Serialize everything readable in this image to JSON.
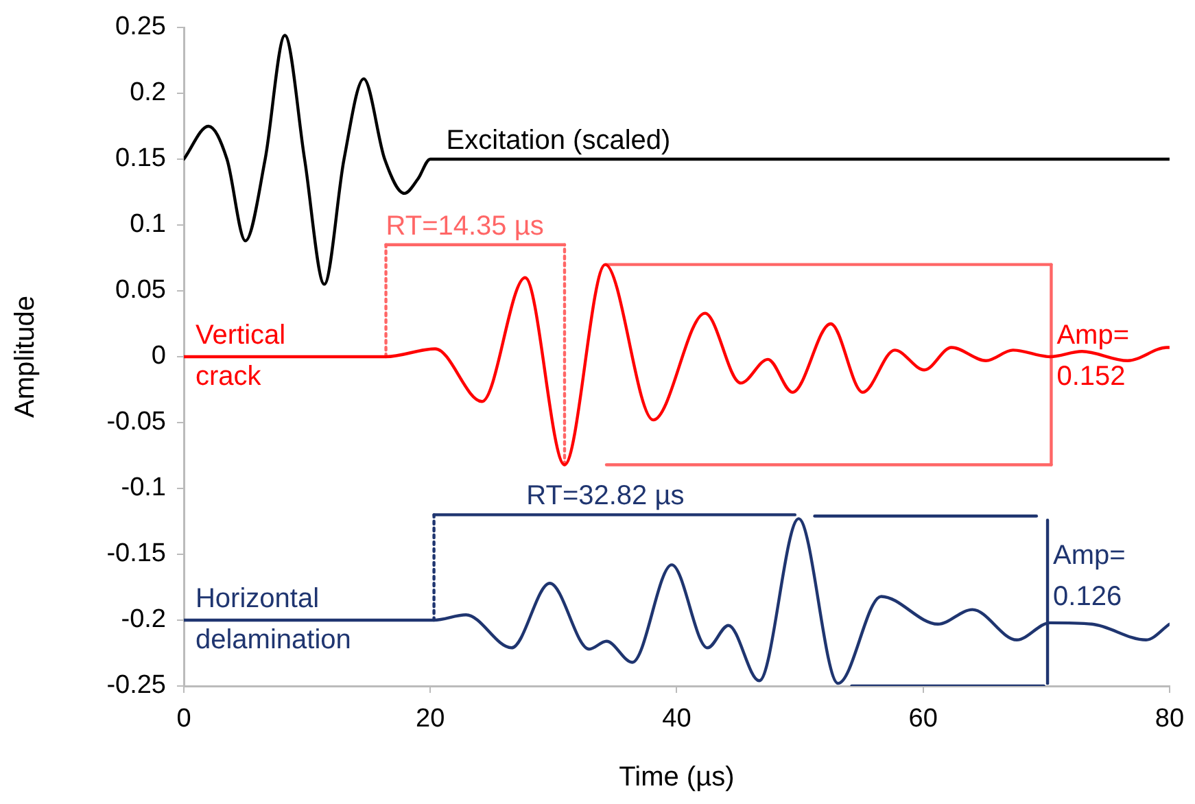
{
  "chart_data": {
    "type": "line",
    "xlabel": "Time (µs)",
    "ylabel": "Amplitude",
    "xlim": [
      0,
      80
    ],
    "xticks": [
      0,
      20,
      40,
      60,
      80
    ],
    "ylim": [
      -0.25,
      0.25
    ],
    "yticks": [
      -0.25,
      -0.2,
      -0.15,
      -0.1,
      -0.05,
      0,
      0.05,
      0.1,
      0.15,
      0.2,
      0.25
    ],
    "grid": false,
    "legend": false,
    "marker": "none",
    "series": [
      {
        "color": "#000000",
        "x": [
          0,
          2,
          3.5,
          5,
          6.6,
          8.2,
          9.8,
          11.4,
          13,
          14.6,
          16.3,
          17.9,
          19,
          20,
          80
        ],
        "values": [
          0.15,
          0.175,
          0.15,
          0.088,
          0.15,
          0.244,
          0.15,
          0.055,
          0.15,
          0.211,
          0.15,
          0.124,
          0.135,
          0.15,
          0.15
        ]
      },
      {
        "color": "#ff0000",
        "x": [
          0,
          16.4,
          20.4,
          24.2,
          27.7,
          30.9,
          34.2,
          38.1,
          42.3,
          45.2,
          47.4,
          49.4,
          52.5,
          55.1,
          57.7,
          60.1,
          62.3,
          65.1,
          67.3,
          70.3,
          72.9,
          76.6,
          79.8,
          80
        ],
        "values": [
          0,
          0,
          0.006,
          -0.034,
          0.06,
          -0.082,
          0.07,
          -0.048,
          0.033,
          -0.02,
          -0.002,
          -0.027,
          0.025,
          -0.027,
          0.005,
          -0.01,
          0.007,
          -0.003,
          0.005,
          0,
          0.004,
          -0.003,
          0.007,
          0.007
        ]
      },
      {
        "color": "#1f3570",
        "x": [
          0,
          20.3,
          22.9,
          26.6,
          29.7,
          32.9,
          34.3,
          36.4,
          39.6,
          42.5,
          44.2,
          46.7,
          49.9,
          53.1,
          56.6,
          61.2,
          64,
          67.6,
          70.3,
          73.7,
          78.1,
          80
        ],
        "values": [
          -0.2,
          -0.2,
          -0.196,
          -0.221,
          -0.172,
          -0.222,
          -0.216,
          -0.232,
          -0.158,
          -0.221,
          -0.204,
          -0.246,
          -0.123,
          -0.248,
          -0.182,
          -0.203,
          -0.192,
          -0.215,
          -0.202,
          -0.203,
          -0.215,
          -0.203
        ]
      },
      {
        "color": "#ff6666",
        "x": [
          16.4,
          30.9
        ],
        "values": [
          0.085,
          0.085
        ]
      },
      {
        "color": "#ff6666",
        "line_style": "dotted",
        "x": [
          16.4,
          16.4
        ],
        "values": [
          0,
          0.085
        ]
      },
      {
        "color": "#ff6666",
        "line_style": "dotted",
        "x": [
          30.9,
          30.9
        ],
        "values": [
          -0.082,
          0.085
        ]
      },
      {
        "color": "#ff6666",
        "x": [
          34.3,
          70.4
        ],
        "values": [
          0.07,
          0.07
        ]
      },
      {
        "color": "#ff6666",
        "x": [
          34.3,
          70.4
        ],
        "values": [
          -0.082,
          -0.082
        ]
      },
      {
        "color": "#ff6666",
        "x": [
          70.4,
          70.4
        ],
        "values": [
          0.07,
          -0.082
        ]
      },
      {
        "color": "#1f3570",
        "x": [
          20.3,
          49.6
        ],
        "values": [
          -0.12,
          -0.12
        ]
      },
      {
        "color": "#1f3570",
        "line_style": "dotted",
        "x": [
          20.3,
          20.3
        ],
        "values": [
          -0.2,
          -0.12
        ]
      },
      {
        "color": "#1f3570",
        "x": [
          51.2,
          69.2
        ],
        "values": [
          -0.121,
          -0.121
        ]
      },
      {
        "color": "#1f3570",
        "x": [
          54.2,
          69.8
        ],
        "values": [
          -0.25,
          -0.25
        ]
      },
      {
        "color": "#1f3570",
        "x": [
          70.1,
          70.1
        ],
        "values": [
          -0.124,
          -0.248
        ]
      }
    ],
    "annotations": [
      {
        "text": "Excitation (scaled)",
        "x": 21.3,
        "y": 0.15
      },
      {
        "text": "RT=14.35 µs",
        "x": 16.4,
        "y": 0.085
      },
      {
        "text": "Vertical\ncrack",
        "x": 0.5,
        "y": 0
      },
      {
        "text": "Amp=\n0.152",
        "x": 70.4,
        "y": 0
      },
      {
        "text": "RT=32.82 µs",
        "x": 27.8,
        "y": -0.12
      },
      {
        "text": "Horizontal\ndelamination",
        "x": 0.5,
        "y": -0.2
      },
      {
        "text": "Amp=\n0.126",
        "x": 70.1,
        "y": -0.167
      }
    ]
  }
}
